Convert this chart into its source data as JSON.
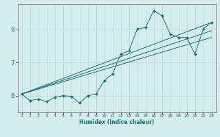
{
  "title": "",
  "xlabel": "Humidex (Indice chaleur)",
  "ylabel": "",
  "bg_color": "#d4ecec",
  "grid_color": "#b8d0d0",
  "line_color": "#1a6b6b",
  "xlim": [
    -0.5,
    23.5
  ],
  "ylim": [
    5.5,
    8.75
  ],
  "xticks": [
    0,
    1,
    2,
    3,
    4,
    5,
    6,
    7,
    8,
    9,
    10,
    11,
    12,
    13,
    14,
    15,
    16,
    17,
    18,
    19,
    20,
    21,
    22,
    23
  ],
  "yticks": [
    6,
    7,
    8
  ],
  "series": {
    "line1": {
      "x": [
        0,
        1,
        2,
        3,
        4,
        5,
        6,
        7,
        8,
        9,
        10,
        11,
        12,
        13,
        14,
        15,
        16,
        17,
        18,
        19,
        20,
        21,
        22,
        23
      ],
      "y": [
        6.05,
        5.85,
        5.9,
        5.82,
        5.95,
        6.0,
        5.98,
        5.78,
        6.0,
        6.05,
        6.45,
        6.65,
        7.25,
        7.35,
        8.0,
        8.05,
        8.55,
        8.4,
        7.85,
        7.75,
        7.75,
        7.25,
        8.0,
        8.2
      ]
    },
    "line2": {
      "x": [
        0,
        23
      ],
      "y": [
        6.05,
        8.2
      ]
    },
    "line3": {
      "x": [
        0,
        23
      ],
      "y": [
        6.05,
        7.95
      ]
    },
    "line4": {
      "x": [
        0,
        23
      ],
      "y": [
        6.05,
        7.75
      ]
    }
  }
}
